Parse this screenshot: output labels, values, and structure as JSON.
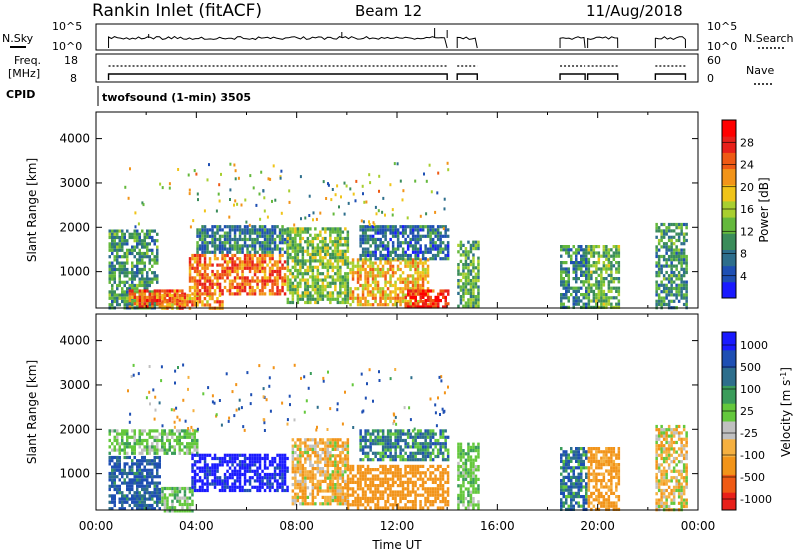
{
  "header": {
    "station": "Rankin Inlet (fitACF)",
    "beam": "Beam 12",
    "date": "11/Aug/2018"
  },
  "strip_panels": {
    "nsky": {
      "left_label": "N.Sky",
      "right_label": "N.Search",
      "left_ticks": [
        "10^5",
        "10^0"
      ],
      "right_ticks": [
        "10^5",
        "10^0"
      ]
    },
    "freq": {
      "left_label_1": "Freq.",
      "left_label_2": "[MHz]",
      "right_label": "Nave",
      "left_ticks": [
        "18",
        "8"
      ],
      "right_ticks": [
        "60",
        "0"
      ]
    },
    "cpid": {
      "label": "CPID",
      "program": "twofsound (1-min) 3505"
    }
  },
  "chart_data": [
    {
      "type": "heatmap",
      "title": "",
      "xlabel": "",
      "ylabel": "Slant Range [km]",
      "x_tick_labels": [],
      "y_ticks": [
        1000,
        2000,
        3000,
        4000
      ],
      "xlim": [
        0,
        24
      ],
      "ylim": [
        180,
        4600
      ],
      "colorbar": {
        "label": "Power [dB]",
        "ticks": [
          "4",
          "8",
          "12",
          "16",
          "20",
          "24",
          "28"
        ],
        "colors": [
          "#1a1aff",
          "#1e4fb3",
          "#2d6e8c",
          "#3a8c5a",
          "#64b83c",
          "#a8cf2f",
          "#f0c419",
          "#f29419",
          "#ef5a14",
          "#e8201a",
          "#ff0000"
        ]
      },
      "regions": [
        {
          "t": [
            0.5,
            2.4
          ],
          "r": [
            180,
            1950
          ],
          "value": 10
        },
        {
          "t": [
            1.3,
            3.5
          ],
          "r": [
            180,
            600
          ],
          "value": 25
        },
        {
          "t": [
            2.6,
            5.0
          ],
          "r": [
            200,
            500
          ],
          "value": 22
        },
        {
          "t": [
            3.7,
            7.5
          ],
          "r": [
            500,
            1400
          ],
          "value": 24
        },
        {
          "t": [
            4.0,
            7.6
          ],
          "r": [
            1450,
            2050
          ],
          "value": 8
        },
        {
          "t": [
            7.6,
            10.0
          ],
          "r": [
            300,
            2000
          ],
          "value": 14
        },
        {
          "t": [
            10.1,
            13.2
          ],
          "r": [
            250,
            1300
          ],
          "value": 20
        },
        {
          "t": [
            12.3,
            14.0
          ],
          "r": [
            180,
            600
          ],
          "value": 28
        },
        {
          "t": [
            10.5,
            14.0
          ],
          "r": [
            1300,
            2050
          ],
          "value": 7
        },
        {
          "t": [
            14.4,
            15.2
          ],
          "r": [
            200,
            1700
          ],
          "value": 12
        },
        {
          "t": [
            18.5,
            19.5
          ],
          "r": [
            200,
            1600
          ],
          "value": 9
        },
        {
          "t": [
            19.6,
            20.8
          ],
          "r": [
            200,
            1600
          ],
          "value": 13
        },
        {
          "t": [
            22.3,
            23.5
          ],
          "r": [
            200,
            2100
          ],
          "value": 10
        }
      ]
    },
    {
      "type": "heatmap",
      "title": "",
      "xlabel": "Time UT",
      "ylabel": "Slant Range [km]",
      "x_tick_labels": [
        "00:00",
        "04:00",
        "08:00",
        "12:00",
        "16:00",
        "20:00",
        "00:00"
      ],
      "y_ticks": [
        1000,
        2000,
        3000,
        4000
      ],
      "xlim": [
        0,
        24
      ],
      "ylim": [
        180,
        4600
      ],
      "colorbar": {
        "label": "Velocity [m s^-1]",
        "ticks": [
          "1000",
          "500",
          "100",
          "25",
          "-25",
          "-100",
          "-500",
          "-1000"
        ],
        "colors": [
          "#e8201a",
          "#ef5a14",
          "#f29419",
          "#f5b040",
          "#c0c0c0",
          "#64c83c",
          "#3a9c5a",
          "#2d6e8c",
          "#1e4fb3",
          "#1a1aff"
        ]
      },
      "regions": [
        {
          "t": [
            0.5,
            2.5
          ],
          "r": [
            180,
            1400
          ],
          "value": 120
        },
        {
          "t": [
            0.5,
            4.0
          ],
          "r": [
            1450,
            2000
          ],
          "value": 0
        },
        {
          "t": [
            2.6,
            3.8
          ],
          "r": [
            180,
            700
          ],
          "value": 0
        },
        {
          "t": [
            3.8,
            7.6
          ],
          "r": [
            600,
            1450
          ],
          "value": 700
        },
        {
          "t": [
            7.8,
            10.0
          ],
          "r": [
            300,
            1800
          ],
          "value": -80
        },
        {
          "t": [
            10.0,
            14.0
          ],
          "r": [
            200,
            1200
          ],
          "value": -300
        },
        {
          "t": [
            10.5,
            14.0
          ],
          "r": [
            1300,
            2000
          ],
          "value": 60
        },
        {
          "t": [
            14.4,
            15.2
          ],
          "r": [
            200,
            1700
          ],
          "value": 0
        },
        {
          "t": [
            18.5,
            19.5
          ],
          "r": [
            200,
            1600
          ],
          "value": 80
        },
        {
          "t": [
            19.6,
            20.8
          ],
          "r": [
            200,
            1600
          ],
          "value": -150
        },
        {
          "t": [
            22.3,
            23.5
          ],
          "r": [
            200,
            2100
          ],
          "value": -60
        }
      ]
    }
  ]
}
